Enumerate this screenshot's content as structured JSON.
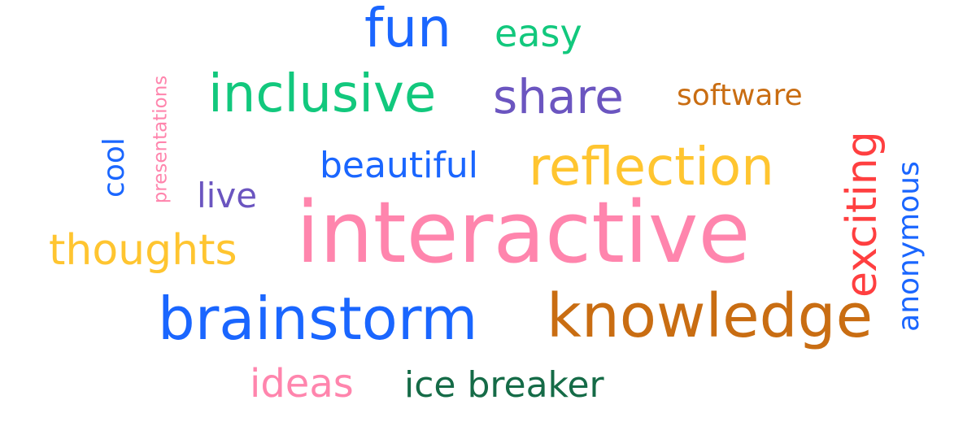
{
  "colors": {
    "blue": "#1a66ff",
    "green": "#12c87d",
    "purple": "#6b55c0",
    "brown": "#c96d12",
    "yellow": "#ffc530",
    "pink": "#ff85ad",
    "red": "#ff3f40",
    "darkgreen": "#156b47",
    "background": "#ffffff"
  },
  "words": {
    "fun": "fun",
    "easy": "easy",
    "inclusive": "inclusive",
    "share": "share",
    "software": "software",
    "cool": "cool",
    "presentations": "presentations",
    "beautiful": "beautiful",
    "reflection": "reflection",
    "live": "live",
    "interactive": "interactive",
    "exciting": "exciting",
    "anonymous": "anonymous",
    "thoughts": "thoughts",
    "brainstorm": "brainstorm",
    "knowledge": "knowledge",
    "ideas": "ideas",
    "ice_breaker": "ice breaker"
  },
  "word_colors": {
    "fun": "blue",
    "easy": "green",
    "inclusive": "green",
    "share": "purple",
    "software": "brown",
    "cool": "blue",
    "presentations": "pink",
    "beautiful": "blue",
    "reflection": "yellow",
    "live": "purple",
    "interactive": "pink",
    "exciting": "red",
    "anonymous": "blue",
    "thoughts": "yellow",
    "brainstorm": "blue",
    "knowledge": "brown",
    "ideas": "pink",
    "ice_breaker": "darkgreen"
  }
}
